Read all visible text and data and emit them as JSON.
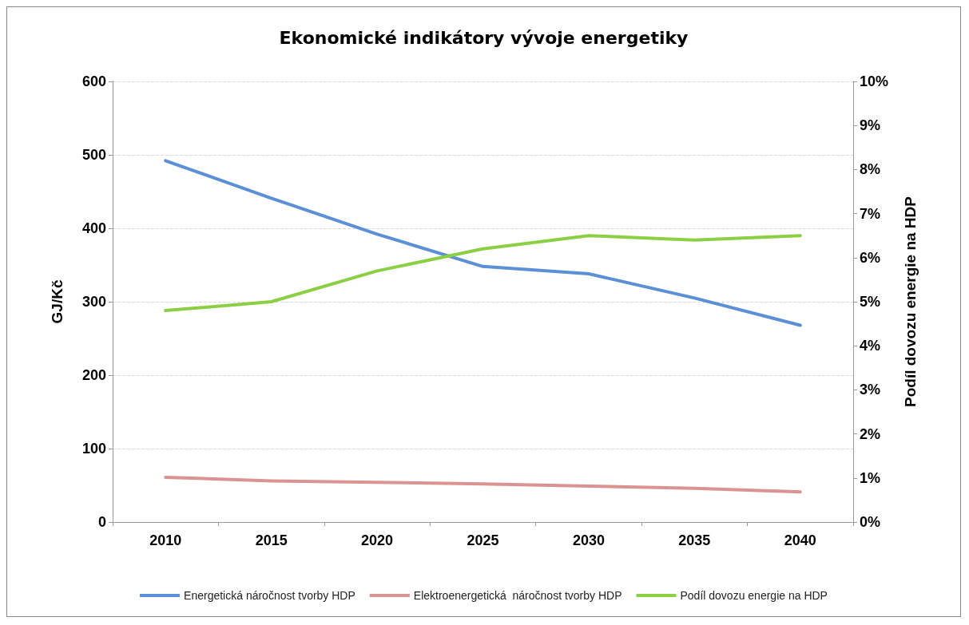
{
  "chart_data": {
    "type": "line",
    "title": "Ekonomické indikátory vývoje energetiky",
    "ylabel": "GJ/Kč",
    "y2label": "Podíl dovozu energie na HDP",
    "categories": [
      "2010",
      "2015",
      "2020",
      "2025",
      "2030",
      "2035",
      "2040"
    ],
    "series": [
      {
        "name": "Energetická náročnost tvorby HDP",
        "color": "#5b8fd6",
        "values": [
          492,
          441,
          392,
          348,
          338,
          305,
          268
        ]
      },
      {
        "name": "Elektroenergetická  náročnost tvorby HDP",
        "color": "#dc9290",
        "values": [
          61,
          56,
          54,
          52,
          49,
          46,
          41
        ]
      },
      {
        "name": "Podíl dovozu energie na HDP",
        "color": "#8bcf45",
        "axis": "y2",
        "values": [
          4.8,
          5.0,
          5.7,
          6.2,
          6.5,
          6.4,
          6.5
        ]
      }
    ],
    "ylim": [
      0,
      600
    ],
    "yticks": [
      0,
      100,
      200,
      300,
      400,
      500,
      600
    ],
    "y2lim": [
      0,
      10
    ],
    "y2ticks": [
      {
        "value": 0,
        "label": "0%"
      },
      {
        "value": 1,
        "label": "1%"
      },
      {
        "value": 2,
        "label": "2%"
      },
      {
        "value": 3,
        "label": "3%"
      },
      {
        "value": 4,
        "label": "4%"
      },
      {
        "value": 5,
        "label": "5%"
      },
      {
        "value": 6,
        "label": "6%"
      },
      {
        "value": 7,
        "label": "7%"
      },
      {
        "value": 8,
        "label": "8%"
      },
      {
        "value": 9,
        "label": "9%"
      },
      {
        "value": 10,
        "label": "10%"
      }
    ],
    "grid": "y",
    "legend": "bottom",
    "marker": "none",
    "line_style": "solid"
  }
}
